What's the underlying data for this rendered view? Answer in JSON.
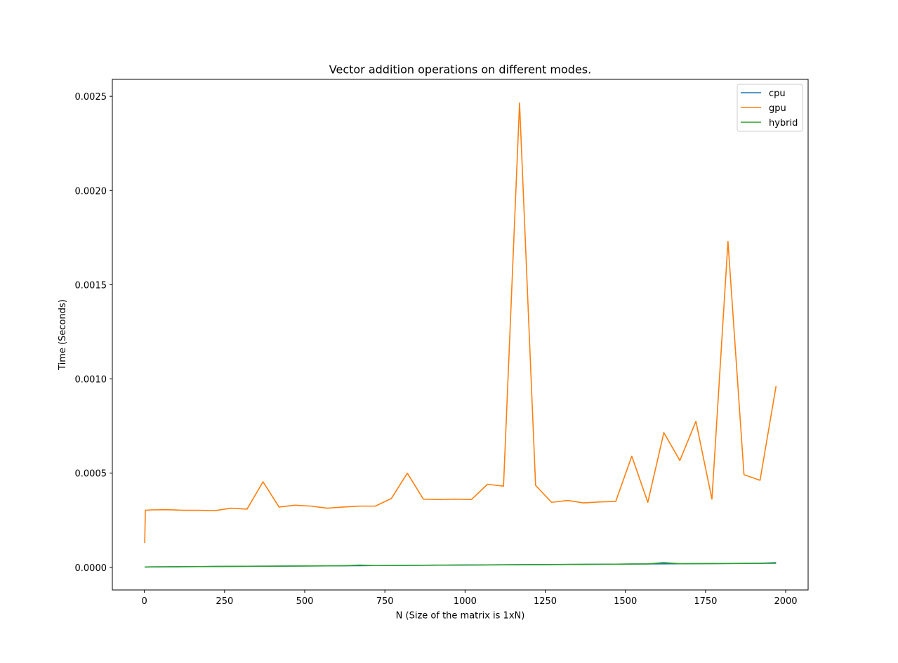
{
  "chart_data": {
    "type": "line",
    "title": "Vector addition operations on different modes.",
    "xlabel": "N (Size of the matrix is 1xN)",
    "ylabel": "Time (Seconds)",
    "xlim": [
      -100,
      2070
    ],
    "ylim": [
      -0.00012,
      0.00259
    ],
    "x_ticks": [
      0,
      250,
      500,
      750,
      1000,
      1250,
      1500,
      1750,
      2000
    ],
    "y_ticks": [
      0.0,
      0.0005,
      0.001,
      0.0015,
      0.002,
      0.0025
    ],
    "x_tick_labels": [
      "0",
      "250",
      "500",
      "750",
      "1000",
      "1250",
      "1500",
      "1750",
      "2000"
    ],
    "y_tick_labels": [
      "0.0000",
      "0.0005",
      "0.0010",
      "0.0015",
      "0.0020",
      "0.0025"
    ],
    "grid": false,
    "legend_position": "top-right",
    "x": [
      1,
      3,
      20,
      70,
      120,
      170,
      220,
      270,
      320,
      370,
      420,
      470,
      520,
      570,
      620,
      670,
      720,
      770,
      820,
      870,
      920,
      970,
      1020,
      1070,
      1120,
      1170,
      1220,
      1270,
      1320,
      1370,
      1420,
      1470,
      1520,
      1570,
      1620,
      1670,
      1720,
      1770,
      1820,
      1870,
      1920,
      1970
    ],
    "series": [
      {
        "name": "cpu",
        "color": "#1f77b4",
        "values": [
          3e-07,
          2e-06,
          2.5e-06,
          3e-06,
          3.5e-06,
          4e-06,
          4.5e-06,
          5e-06,
          5.5e-06,
          6e-06,
          6.5e-06,
          7e-06,
          7.5e-06,
          8e-06,
          8.5e-06,
          9e-06,
          9.5e-06,
          1e-05,
          1.05e-05,
          1.1e-05,
          1.15e-05,
          1.2e-05,
          1.25e-05,
          1.3e-05,
          1.35e-05,
          1.4e-05,
          1.45e-05,
          1.5e-05,
          1.55e-05,
          1.6e-05,
          1.65e-05,
          1.7e-05,
          1.75e-05,
          1.8e-05,
          1.85e-05,
          1.9e-05,
          1.95e-05,
          2e-05,
          2.05e-05,
          2.1e-05,
          2.15e-05,
          2.2e-05
        ]
      },
      {
        "name": "gpu",
        "color": "#ff7f0e",
        "values": [
          0.000129,
          0.000303,
          0.000305,
          0.000306,
          0.000303,
          0.000303,
          0.000301,
          0.000314,
          0.000309,
          0.000454,
          0.00032,
          0.00033,
          0.000325,
          0.000314,
          0.00032,
          0.000325,
          0.000325,
          0.000365,
          0.0005,
          0.000362,
          0.00036,
          0.000362,
          0.00036,
          0.000441,
          0.000431,
          0.002465,
          0.000435,
          0.000345,
          0.000355,
          0.000342,
          0.000347,
          0.00035,
          0.00059,
          0.000345,
          0.000715,
          0.000567,
          0.000775,
          0.000362,
          0.00173,
          0.000492,
          0.000462,
          0.000962
        ]
      },
      {
        "name": "hybrid",
        "color": "#2ca02c",
        "values": [
          1e-06,
          2e-06,
          2.5e-06,
          3e-06,
          3.5e-06,
          4e-06,
          4.5e-06,
          5e-06,
          5.5e-06,
          6e-06,
          6.5e-06,
          7e-06,
          7.5e-06,
          8e-06,
          8.5e-06,
          1.2e-05,
          9.5e-06,
          1e-05,
          1.05e-05,
          1.1e-05,
          1.15e-05,
          1.2e-05,
          1.25e-05,
          1.3e-05,
          1.35e-05,
          1.4e-05,
          1.45e-05,
          1.5e-05,
          1.55e-05,
          1.6e-05,
          1.65e-05,
          1.7e-05,
          1.75e-05,
          1.8e-05,
          2.5e-05,
          1.9e-05,
          1.95e-05,
          2e-05,
          2.05e-05,
          2.1e-05,
          2.15e-05,
          2.5e-05
        ]
      }
    ]
  }
}
